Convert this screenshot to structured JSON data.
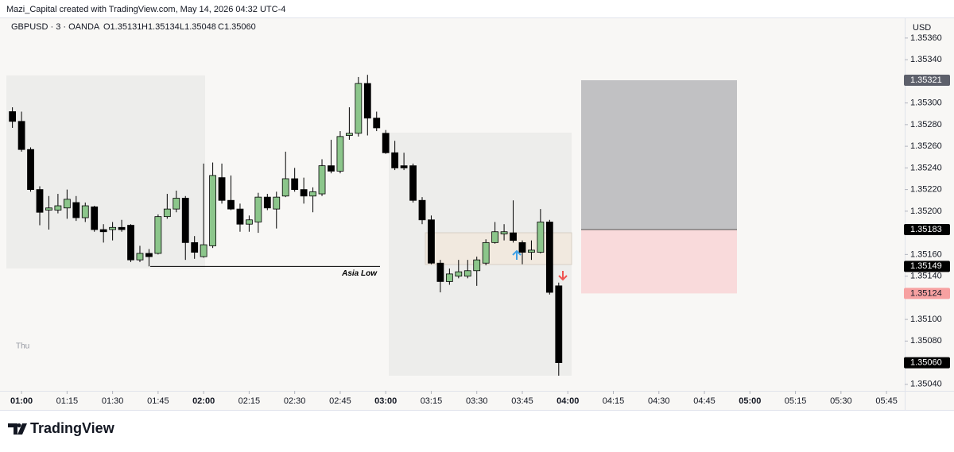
{
  "header": "Mazi_Capital created with TradingView.com, May 14, 2026 04:32 UTC-4",
  "chart_data": {
    "type": "candlestick",
    "symbol": "GBPUSD · 3 · OANDA",
    "ohlc_legend": [
      "O1.35131",
      "H1.35134",
      "L1.35048",
      "C1.35060"
    ],
    "currency": "USD",
    "day_label": "Thu",
    "annotation": "Asia Low",
    "x": [
      "00:57",
      "01:00",
      "01:03",
      "01:06",
      "01:09",
      "01:12",
      "01:15",
      "01:18",
      "01:21",
      "01:24",
      "01:27",
      "01:30",
      "01:33",
      "01:36",
      "01:39",
      "01:42",
      "01:45",
      "01:48",
      "01:51",
      "01:54",
      "01:57",
      "02:00",
      "02:03",
      "02:06",
      "02:09",
      "02:12",
      "02:15",
      "02:18",
      "02:21",
      "02:24",
      "02:27",
      "02:30",
      "02:33",
      "02:36",
      "02:39",
      "02:42",
      "02:45",
      "02:48",
      "02:51",
      "02:54",
      "02:57",
      "03:00",
      "03:03",
      "03:06",
      "03:09",
      "03:12",
      "03:15",
      "03:18",
      "03:21",
      "03:24",
      "03:27",
      "03:30",
      "03:33",
      "03:36",
      "03:39",
      "03:42",
      "03:45",
      "03:48",
      "03:51",
      "03:54",
      "03:57"
    ],
    "open": [
      1.35292,
      1.35283,
      1.35257,
      1.3522,
      1.35201,
      1.35201,
      1.35203,
      1.35208,
      1.35194,
      1.35204,
      1.35183,
      1.35183,
      1.35185,
      1.35187,
      1.35155,
      1.35161,
      1.35161,
      1.35195,
      1.35202,
      1.35212,
      1.35171,
      1.35158,
      1.35168,
      1.35231,
      1.3521,
      1.35202,
      1.35188,
      1.3519,
      1.35213,
      1.35202,
      1.35214,
      1.3523,
      1.3522,
      1.35214,
      1.35216,
      1.35242,
      1.35237,
      1.3527,
      1.35272,
      1.35318,
      1.35286,
      1.35272,
      1.35254,
      1.35242,
      1.35242,
      1.3521,
      1.35192,
      1.35152,
      1.35135,
      1.3514,
      1.3514,
      1.35145,
      1.35152,
      1.35171,
      1.35179,
      1.3518,
      1.35171,
      1.35162,
      1.35162,
      1.3519,
      1.35131
    ],
    "high": [
      1.35296,
      1.35292,
      1.35259,
      1.35223,
      1.35214,
      1.35216,
      1.3522,
      1.35214,
      1.35208,
      1.35205,
      1.35188,
      1.3519,
      1.35192,
      1.35188,
      1.35168,
      1.35165,
      1.35197,
      1.35216,
      1.35219,
      1.35214,
      1.35177,
      1.35244,
      1.35245,
      1.35244,
      1.35233,
      1.35207,
      1.35196,
      1.35217,
      1.35216,
      1.35218,
      1.35255,
      1.3524,
      1.35231,
      1.35222,
      1.35248,
      1.35266,
      1.35274,
      1.35296,
      1.35324,
      1.35326,
      1.35292,
      1.35275,
      1.35265,
      1.35254,
      1.35244,
      1.35213,
      1.35196,
      1.35155,
      1.35147,
      1.35155,
      1.35155,
      1.35158,
      1.35174,
      1.3519,
      1.35188,
      1.3521,
      1.35173,
      1.35173,
      1.35202,
      1.35192,
      1.35134
    ],
    "low": [
      1.35277,
      1.35255,
      1.35218,
      1.35187,
      1.35183,
      1.35198,
      1.35193,
      1.35191,
      1.3519,
      1.35181,
      1.35171,
      1.35173,
      1.35181,
      1.35153,
      1.35153,
      1.35149,
      1.3516,
      1.35193,
      1.35199,
      1.35155,
      1.35156,
      1.35157,
      1.35166,
      1.35207,
      1.35201,
      1.35181,
      1.35181,
      1.3518,
      1.35201,
      1.35184,
      1.35213,
      1.35218,
      1.35207,
      1.35199,
      1.35214,
      1.35235,
      1.35235,
      1.35266,
      1.35269,
      1.3527,
      1.35274,
      1.35253,
      1.35238,
      1.35238,
      1.35208,
      1.35188,
      1.35151,
      1.35125,
      1.35132,
      1.35138,
      1.35138,
      1.35131,
      1.3515,
      1.3517,
      1.35173,
      1.35171,
      1.35151,
      1.35155,
      1.35161,
      1.35123,
      1.35048
    ],
    "close": [
      1.35283,
      1.35257,
      1.3522,
      1.35199,
      1.35203,
      1.35205,
      1.35211,
      1.35194,
      1.35205,
      1.35183,
      1.35181,
      1.35185,
      1.35183,
      1.35155,
      1.35161,
      1.35158,
      1.35195,
      1.35202,
      1.35212,
      1.35171,
      1.35162,
      1.35169,
      1.35233,
      1.3521,
      1.35202,
      1.35188,
      1.35192,
      1.35213,
      1.35203,
      1.35213,
      1.3523,
      1.3522,
      1.35214,
      1.35218,
      1.35242,
      1.35237,
      1.35269,
      1.35272,
      1.35318,
      1.35286,
      1.35277,
      1.35254,
      1.3524,
      1.3524,
      1.3521,
      1.35192,
      1.35152,
      1.35135,
      1.35142,
      1.35144,
      1.35145,
      1.35155,
      1.35171,
      1.35181,
      1.35181,
      1.35173,
      1.35162,
      1.35164,
      1.3519,
      1.35125,
      1.3506
    ],
    "up_color": "#8cc68b",
    "down_color": "#000000",
    "xlim": [
      "00:55",
      "05:51"
    ],
    "xticks": [
      "01:00",
      "01:15",
      "01:30",
      "01:45",
      "02:00",
      "02:15",
      "02:30",
      "02:45",
      "03:00",
      "03:15",
      "03:30",
      "03:45",
      "04:00",
      "04:15",
      "04:30",
      "04:45",
      "05:00",
      "05:15",
      "05:30",
      "05:45"
    ],
    "ylim": [
      1.35034,
      1.35379
    ],
    "yticks": [
      {
        "value": 1.3536,
        "label": "1.35360"
      },
      {
        "value": 1.3534,
        "label": "1.35340"
      },
      {
        "value": 1.353,
        "label": "1.35300"
      },
      {
        "value": 1.3528,
        "label": "1.35280"
      },
      {
        "value": 1.3526,
        "label": "1.35260"
      },
      {
        "value": 1.3524,
        "label": "1.35240"
      },
      {
        "value": 1.3522,
        "label": "1.35220"
      },
      {
        "value": 1.352,
        "label": "1.35200"
      },
      {
        "value": 1.3516,
        "label": "1.35160"
      },
      {
        "value": 1.3514,
        "label": "1.35140"
      },
      {
        "value": 1.351,
        "label": "1.35100"
      },
      {
        "value": 1.3508,
        "label": "1.35080"
      },
      {
        "value": 1.3504,
        "label": "1.35040"
      }
    ],
    "price_labels": [
      {
        "value": 1.35321,
        "label": "1.35321",
        "color": "#5d606b",
        "text_color": "#ffffff"
      },
      {
        "value": 1.35183,
        "label": "1.35183",
        "color": "#000000",
        "text_color": "#ffffff"
      },
      {
        "value": 1.35149,
        "label": "1.35149",
        "color": "#000000",
        "text_color": "#ffffff"
      },
      {
        "value": 1.35124,
        "label": "1.35124",
        "color": "#f7a1a1",
        "text_color": "#131722"
      },
      {
        "value": 1.3506,
        "label": "1.35060",
        "color": "#000000",
        "text_color": "#ffffff"
      }
    ]
  },
  "footer_logo": "TradingView"
}
